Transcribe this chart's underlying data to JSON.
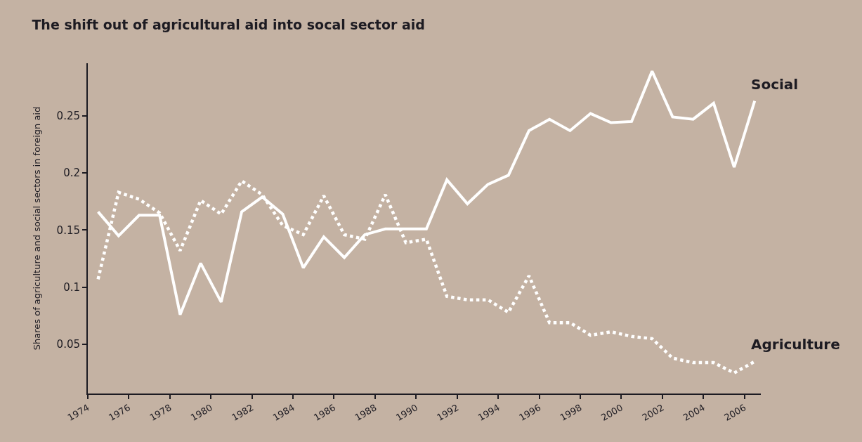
{
  "chart_data": {
    "type": "line",
    "title": "The shift out of agricultural aid into socal sector aid",
    "ylabel": "Shares of agriculture and social sectors in foreign aid",
    "x": [
      1974.5,
      1975.5,
      1976.5,
      1977.5,
      1978.5,
      1979.5,
      1980.5,
      1981.5,
      1982.5,
      1983.5,
      1984.5,
      1985.5,
      1986.5,
      1987.5,
      1988.5,
      1989.5,
      1990.5,
      1991.5,
      1992.5,
      1993.5,
      1994.5,
      1995.5,
      1996.5,
      1997.5,
      1998.5,
      1999.5,
      2000.5,
      2001.5,
      2002.5,
      2003.5,
      2004.5,
      2005.5,
      2006.5
    ],
    "series": [
      {
        "name": "Social",
        "color": "#ffffff",
        "line_style": "solid",
        "values": [
          0.166,
          0.145,
          0.163,
          0.163,
          0.076,
          0.121,
          0.087,
          0.166,
          0.179,
          0.164,
          0.117,
          0.144,
          0.126,
          0.146,
          0.151,
          0.151,
          0.151,
          0.194,
          0.173,
          0.19,
          0.198,
          0.237,
          0.247,
          0.237,
          0.252,
          0.244,
          0.245,
          0.289,
          0.249,
          0.247,
          0.261,
          0.205,
          0.263
        ]
      },
      {
        "name": "Agriculture",
        "color": "#ffffff",
        "line_style": "dotted",
        "values": [
          0.107,
          0.183,
          0.177,
          0.165,
          0.132,
          0.176,
          0.164,
          0.193,
          0.181,
          0.154,
          0.146,
          0.18,
          0.146,
          0.142,
          0.181,
          0.139,
          0.142,
          0.092,
          0.089,
          0.089,
          0.078,
          0.11,
          0.069,
          0.069,
          0.058,
          0.061,
          0.057,
          0.055,
          0.038,
          0.034,
          0.034,
          0.025,
          0.035
        ]
      }
    ],
    "xlim": [
      1974,
      2006.8
    ],
    "xticks": [
      1974,
      1976,
      1978,
      1980,
      1982,
      1984,
      1986,
      1988,
      1990,
      1992,
      1994,
      1996,
      1998,
      2000,
      2002,
      2004,
      2006
    ],
    "ylim": [
      0.007,
      0.296
    ],
    "yticks": [
      0.05,
      0.1,
      0.15,
      0.2,
      0.25
    ],
    "grid": false,
    "legend": false,
    "marker": "none"
  }
}
